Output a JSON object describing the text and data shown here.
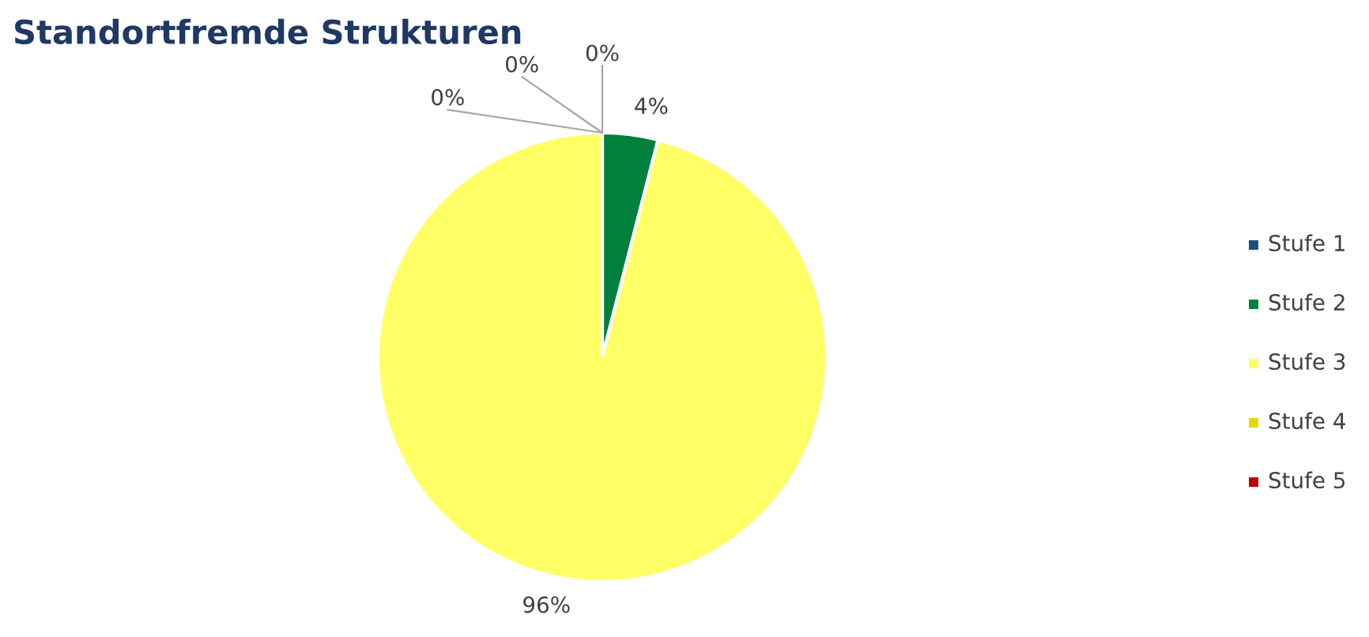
{
  "chart_data": {
    "type": "pie",
    "title": "Standortfremde Strukturen",
    "categories": [
      "Stufe 1",
      "Stufe 2",
      "Stufe 3",
      "Stufe 4",
      "Stufe 5"
    ],
    "values": [
      0,
      4,
      96,
      0,
      0
    ],
    "colors": [
      "#1f4e79",
      "#00803c",
      "#ffff66",
      "#e6d800",
      "#c00000"
    ],
    "value_labels": [
      "0%",
      "4%",
      "96%",
      "0%",
      "0%"
    ],
    "legend": "right"
  }
}
